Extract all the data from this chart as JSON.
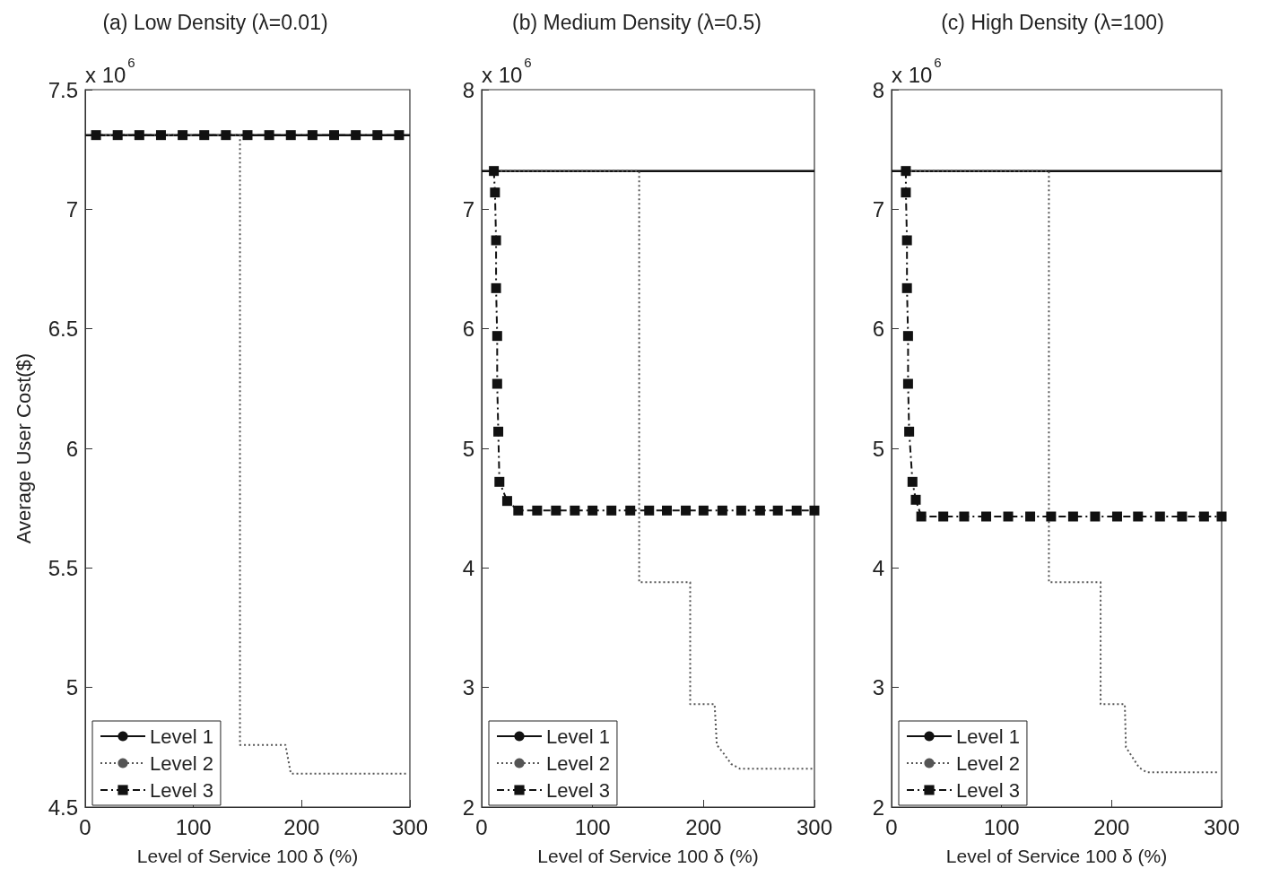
{
  "chart_data": [
    {
      "type": "line",
      "title": "(a) Low Density (λ=0.01)",
      "xlabel": "Level of Service 100 δ (%)",
      "ylabel": "Average User Cost($)",
      "annotations": [
        "x 10$^{6}$"
      ],
      "xlim": [
        0,
        300
      ],
      "xticks": [
        0,
        100,
        200,
        300
      ],
      "ylim": [
        4.5,
        7.5
      ],
      "yticks": [
        4.5,
        5,
        5.5,
        6,
        6.5,
        7,
        7.5
      ],
      "grid": false,
      "legend": "bottom left",
      "series": [
        {
          "name": "Level 1",
          "color": "#111111",
          "marker": "none",
          "line_style": "solid",
          "x": [
            0,
            300
          ],
          "values": [
            7.31,
            7.31
          ]
        },
        {
          "name": "Level 2",
          "color": "#555555",
          "marker": "none",
          "line_style": "dotted",
          "x": [
            10,
            143,
            143,
            185,
            190,
            298
          ],
          "values": [
            7.31,
            7.31,
            4.76,
            4.76,
            4.64,
            4.64
          ]
        },
        {
          "name": "Level 3",
          "color": "#111111",
          "marker": "square",
          "line_style": "dashed",
          "x": [
            10,
            30,
            50,
            70,
            90,
            110,
            130,
            150,
            170,
            190,
            210,
            230,
            250,
            270,
            290
          ],
          "values": [
            7.31,
            7.31,
            7.31,
            7.31,
            7.31,
            7.31,
            7.31,
            7.31,
            7.31,
            7.31,
            7.31,
            7.31,
            7.31,
            7.31,
            7.31
          ]
        }
      ]
    },
    {
      "type": "line",
      "title": "(b) Medium Density (λ=0.5)",
      "xlabel": "Level of Service 100 δ (%)",
      "annotations": [
        "x 10$^{6}$"
      ],
      "xlim": [
        0,
        300
      ],
      "xticks": [
        0,
        100,
        200,
        300
      ],
      "ylim": [
        2,
        8
      ],
      "yticks": [
        2,
        3,
        4,
        5,
        6,
        7,
        8
      ],
      "grid": false,
      "legend": "bottom left",
      "series": [
        {
          "name": "Level 1",
          "color": "#111111",
          "marker": "none",
          "line_style": "solid",
          "x": [
            0,
            300
          ],
          "values": [
            7.32,
            7.32
          ]
        },
        {
          "name": "Level 2",
          "color": "#555555",
          "marker": "none",
          "line_style": "dotted",
          "x": [
            9,
            142,
            142,
            188,
            188,
            210,
            212,
            218,
            225,
            233,
            300
          ],
          "values": [
            7.32,
            7.32,
            3.88,
            3.88,
            2.86,
            2.86,
            2.52,
            2.45,
            2.36,
            2.32,
            2.32
          ]
        },
        {
          "name": "Level 3",
          "color": "#111111",
          "marker": "square",
          "line_style": "dashed",
          "x": [
            11,
            12,
            13,
            13,
            14,
            14,
            15,
            16,
            23,
            33,
            50,
            67,
            84,
            100,
            117,
            134,
            151,
            167,
            184,
            200,
            217,
            234,
            251,
            267,
            284,
            300
          ],
          "values": [
            7.32,
            7.14,
            6.74,
            6.34,
            5.94,
            5.54,
            5.14,
            4.72,
            4.56,
            4.48,
            4.48,
            4.48,
            4.48,
            4.48,
            4.48,
            4.48,
            4.48,
            4.48,
            4.48,
            4.48,
            4.48,
            4.48,
            4.48,
            4.48,
            4.48,
            4.48
          ]
        }
      ]
    },
    {
      "type": "line",
      "title": "(c) High Density (λ=100)",
      "xlabel": "Level of Service 100 δ (%)",
      "annotations": [
        "x 10$^{6}$"
      ],
      "xlim": [
        0,
        300
      ],
      "xticks": [
        0,
        100,
        200,
        300
      ],
      "ylim": [
        2,
        8
      ],
      "yticks": [
        2,
        3,
        4,
        5,
        6,
        7,
        8
      ],
      "grid": false,
      "legend": "bottom left",
      "series": [
        {
          "name": "Level 1",
          "color": "#111111",
          "marker": "none",
          "line_style": "solid",
          "x": [
            0,
            300
          ],
          "values": [
            7.32,
            7.32
          ]
        },
        {
          "name": "Level 2",
          "color": "#555555",
          "marker": "none",
          "line_style": "dotted",
          "x": [
            9,
            143,
            143,
            190,
            190,
            212,
            213,
            218,
            225,
            232,
            298
          ],
          "values": [
            7.32,
            7.32,
            3.88,
            3.88,
            2.86,
            2.86,
            2.5,
            2.43,
            2.33,
            2.29,
            2.29
          ]
        },
        {
          "name": "Level 3",
          "color": "#111111",
          "marker": "square",
          "line_style": "dashed",
          "x": [
            13,
            13,
            14,
            14,
            15,
            15,
            16,
            19,
            22,
            27,
            47,
            66,
            86,
            106,
            126,
            145,
            165,
            185,
            205,
            224,
            244,
            264,
            284,
            300
          ],
          "values": [
            7.32,
            7.14,
            6.74,
            6.34,
            5.94,
            5.54,
            5.14,
            4.72,
            4.57,
            4.43,
            4.43,
            4.43,
            4.43,
            4.43,
            4.43,
            4.43,
            4.43,
            4.43,
            4.43,
            4.43,
            4.43,
            4.43,
            4.43,
            4.43
          ]
        }
      ]
    }
  ]
}
